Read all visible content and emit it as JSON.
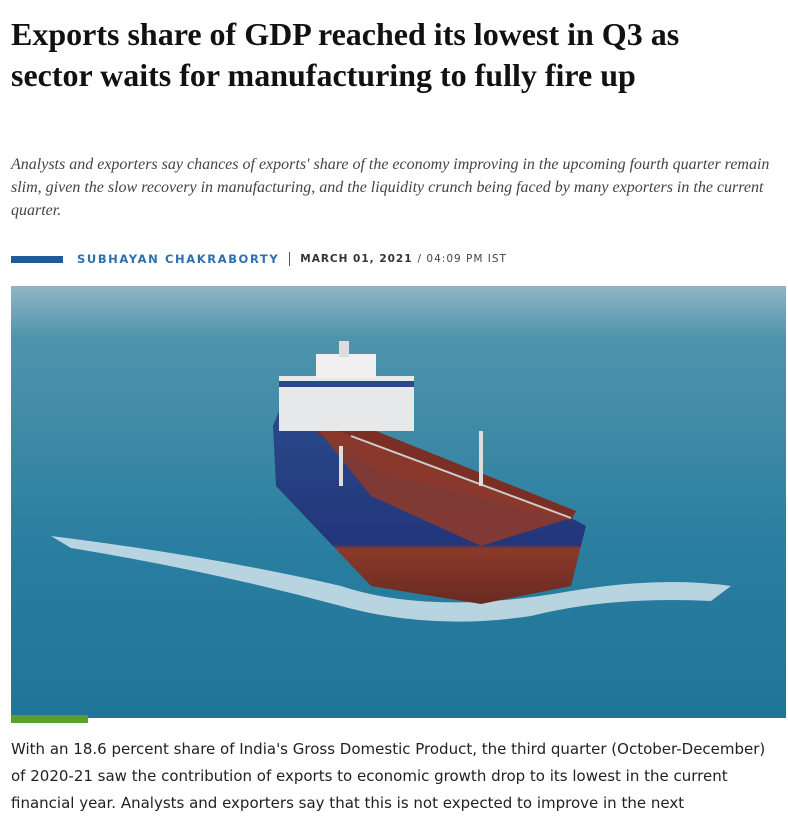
{
  "article": {
    "title": "Exports share of GDP reached its lowest in Q3 as sector waits for manufacturing to fully fire up",
    "summary": "Analysts and exporters say chances of exports' share of the economy improving in the upcoming fourth quarter remain slim, given the slow recovery in manufacturing, and the liquidity crunch being faced by many exporters in the current quarter.",
    "author": "SUBHAYAN CHAKRABORTY",
    "date": "MARCH 01, 2021",
    "time": "/ 04:09 PM IST",
    "body": "With an 18.6 percent share of India's Gross Domestic Product, the third quarter (October-December) of 2020-21 saw the contribution of exports to economic growth drop to its lowest in the current financial year. Analysts and exporters say that this is not expected to improve in the next"
  }
}
